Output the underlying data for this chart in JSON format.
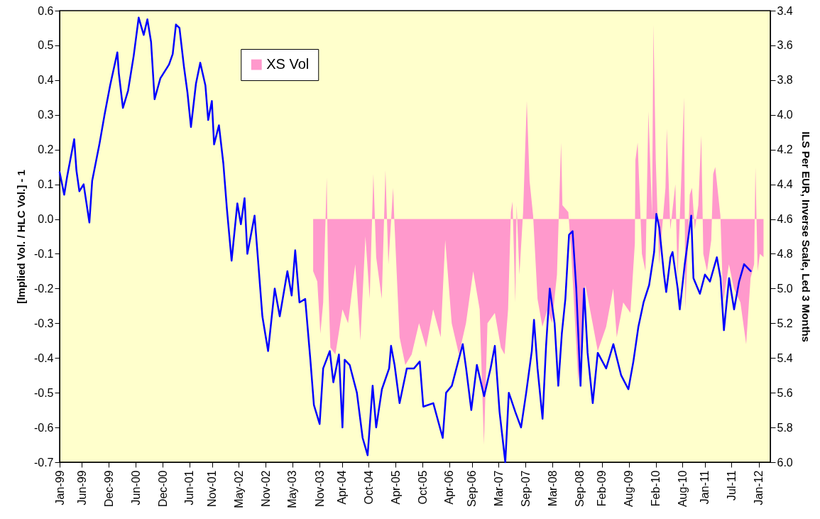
{
  "chart_data": {
    "type": "line",
    "ylabel": "[Implied Vol. / HLC Vol.] - 1",
    "y2label": "ILS Per EUR, Inverse Scale, Led 3 Months",
    "legend": "top left",
    "xlim": [
      "1999-01-01",
      "2012-03-20"
    ],
    "xticks": [
      {
        "value": "1999-01",
        "label": "Jan-99"
      },
      {
        "value": "1999-06",
        "label": "Jun-99"
      },
      {
        "value": "1999-12",
        "label": "Dec-99"
      },
      {
        "value": "2000-06",
        "label": "Jun-00"
      },
      {
        "value": "2000-12",
        "label": "Dec-00"
      },
      {
        "value": "2001-06",
        "label": "Jun-01"
      },
      {
        "value": "2001-11",
        "label": "Nov-01"
      },
      {
        "value": "2002-05",
        "label": "May-02"
      },
      {
        "value": "2002-11",
        "label": "Nov-02"
      },
      {
        "value": "2003-05",
        "label": "May-03"
      },
      {
        "value": "2003-11",
        "label": "Nov-03"
      },
      {
        "value": "2004-04",
        "label": "Apr-04"
      },
      {
        "value": "2004-10",
        "label": "Oct-04"
      },
      {
        "value": "2005-04",
        "label": "Apr-05"
      },
      {
        "value": "2005-10",
        "label": "Oct-05"
      },
      {
        "value": "2006-04",
        "label": "Apr-06"
      },
      {
        "value": "2006-09",
        "label": "Sep-06"
      },
      {
        "value": "2007-03",
        "label": "Mar-07"
      },
      {
        "value": "2007-09",
        "label": "Sep-07"
      },
      {
        "value": "2008-03",
        "label": "Mar-08"
      },
      {
        "value": "2008-09",
        "label": "Sep-08"
      },
      {
        "value": "2009-02",
        "label": "Feb-09"
      },
      {
        "value": "2009-08",
        "label": "Aug-09"
      },
      {
        "value": "2010-02",
        "label": "Feb-10"
      },
      {
        "value": "2010-08",
        "label": "Aug-10"
      },
      {
        "value": "2011-01",
        "label": "Jan-11"
      },
      {
        "value": "2011-07",
        "label": "Jul-11"
      },
      {
        "value": "2012-01",
        "label": "Jan-12"
      }
    ],
    "ylim": [
      -0.7,
      0.6
    ],
    "yticks": [
      -0.7,
      -0.6,
      -0.5,
      -0.4,
      -0.3,
      -0.2,
      -0.1,
      {
        "value": 0,
        "label": "0.0"
      },
      0.1,
      0.2,
      0.3,
      0.4,
      0.5,
      0.6
    ],
    "y2lim": [
      6,
      3.4
    ],
    "y2ticks": [
      3.4,
      3.6,
      3.8,
      {
        "value": 4,
        "label": "4.0"
      },
      4.2,
      4.4,
      4.6,
      4.8,
      {
        "value": 5,
        "label": "5.0"
      },
      5.2,
      5.4,
      5.6,
      5.8,
      {
        "value": 6,
        "label": "6.0"
      }
    ],
    "series": [
      {
        "name": "XS Vol",
        "type": "area",
        "color": "#ff99cc",
        "x": [
          "2003-09-19",
          "2003-10-17",
          "2003-11-07",
          "2003-11-26",
          "2003-12-20",
          "2003-12-30",
          "2004-01-14",
          "2004-02-17",
          "2004-04-05",
          "2004-05-13",
          "2004-07-01",
          "2004-08-05",
          "2004-09-08",
          "2004-10-07",
          "2004-11-01",
          "2004-11-20",
          "2004-12-28",
          "2005-01-22",
          "2005-02-11",
          "2005-03-15",
          "2005-03-24",
          "2005-04-28",
          "2005-06-06",
          "2005-07-19",
          "2005-09-07",
          "2005-10-25",
          "2005-12-12",
          "2006-02-01",
          "2006-03-04",
          "2006-04-17",
          "2006-06-05",
          "2006-07-23",
          "2006-09-10",
          "2006-10-24",
          "2006-11-22",
          "2006-12-16",
          "2007-02-04",
          "2007-03-17",
          "2007-04-11",
          "2007-05-05",
          "2007-05-24",
          "2007-06-04",
          "2007-06-23",
          "2007-07-02",
          "2007-07-21",
          "2007-08-15",
          "2007-09-09",
          "2007-09-28",
          "2007-10-22",
          "2007-11-21",
          "2007-12-24",
          "2008-01-28",
          "2008-02-27",
          "2008-04-01",
          "2008-04-29",
          "2008-05-08",
          "2008-06-17",
          "2008-07-06",
          "2008-08-24",
          "2008-10-11",
          "2008-11-29",
          "2009-01-03",
          "2009-03-01",
          "2009-04-18",
          "2009-05-12",
          "2009-06-25",
          "2009-08-13",
          "2009-09-12",
          "2009-09-16",
          "2009-10-01",
          "2009-10-30",
          "2009-11-23",
          "2009-12-13",
          "2010-01-07",
          "2010-01-16",
          "2010-02-01",
          "2010-02-24",
          "2010-04-08",
          "2010-04-17",
          "2010-05-11",
          "2010-06-14",
          "2010-06-29",
          "2010-07-23",
          "2010-08-12",
          "2010-08-21",
          "2010-09-20",
          "2010-10-05",
          "2010-10-24",
          "2010-11-17",
          "2010-12-07",
          "2010-12-21",
          "2011-01-15",
          "2011-02-13",
          "2011-02-26",
          "2011-03-12",
          "2011-04-16",
          "2011-05-05",
          "2011-06-13",
          "2011-07-17",
          "2011-08-30",
          "2011-10-08",
          "2011-11-07",
          "2011-12-01",
          "2011-12-10",
          "2011-12-25",
          "2012-01-09",
          "2012-02-03"
        ],
        "values": [
          -0.15,
          -0.18,
          -0.33,
          -0.24,
          0.12,
          -0.18,
          -0.37,
          -0.39,
          -0.26,
          -0.3,
          -0.13,
          -0.35,
          -0.05,
          -0.23,
          0.13,
          -0.11,
          -0.23,
          0.14,
          -0.13,
          0.09,
          -0.01,
          -0.34,
          -0.42,
          -0.39,
          -0.3,
          -0.37,
          -0.26,
          -0.34,
          -0.06,
          -0.3,
          -0.39,
          -0.3,
          -0.15,
          -0.26,
          -0.65,
          -0.3,
          -0.27,
          -0.37,
          -0.39,
          -0.26,
          0.02,
          0.05,
          -0.24,
          0.04,
          -0.16,
          0.02,
          0.34,
          0.11,
          0.01,
          -0.23,
          -0.31,
          -0.26,
          -0.3,
          -0.16,
          0.22,
          0.04,
          0.02,
          -0.09,
          -0.47,
          -0.19,
          -0.3,
          -0.38,
          -0.31,
          -0.2,
          -0.34,
          -0.24,
          -0.27,
          -0.07,
          0.17,
          0.22,
          -0.1,
          -0.15,
          0.31,
          0.01,
          0.56,
          0.17,
          -0.13,
          0.09,
          0.26,
          -0.03,
          0.1,
          -0.17,
          0.1,
          0.35,
          -0.26,
          0.07,
          0.09,
          -0.03,
          0.04,
          0.24,
          -0.1,
          -0.15,
          -0.06,
          0.13,
          0.15,
          0.01,
          -0.24,
          -0.13,
          -0.2,
          -0.24,
          -0.36,
          -0.17,
          -0.13,
          0.15,
          -0.15,
          -0.1,
          -0.11
        ]
      },
      {
        "axis": "y2",
        "color": "#0000ff",
        "x": [
          "1999-01-01",
          "1999-02-01",
          "1999-02-20",
          "1999-04-10",
          "1999-04-25",
          "1999-05-15",
          "1999-06-13",
          "1999-07-22",
          "1999-08-10",
          "1999-09-28",
          "1999-11-02",
          "1999-12-10",
          "2000-01-28",
          "2000-02-07",
          "2000-03-06",
          "2000-04-10",
          "2000-05-18",
          "2000-06-21",
          "2000-07-25",
          "2000-08-19",
          "2000-09-13",
          "2000-10-07",
          "2000-11-15",
          "2001-01-13",
          "2001-02-07",
          "2001-03-01",
          "2001-03-25",
          "2001-04-24",
          "2001-05-18",
          "2001-06-11",
          "2001-07-15",
          "2001-08-13",
          "2001-09-17",
          "2001-10-06",
          "2001-10-31",
          "2001-11-15",
          "2001-12-18",
          "2002-01-17",
          "2002-02-10",
          "2002-03-14",
          "2002-04-22",
          "2002-05-16",
          "2002-06-10",
          "2002-06-29",
          "2002-08-17",
          "2002-09-10",
          "2002-10-09",
          "2002-11-17",
          "2003-01-01",
          "2003-02-04",
          "2003-03-28",
          "2003-04-26",
          "2003-05-20",
          "2003-06-18",
          "2003-07-27",
          "2003-08-31",
          "2003-09-24",
          "2003-11-02",
          "2003-11-26",
          "2004-01-10",
          "2004-02-03",
          "2004-03-12",
          "2004-04-05",
          "2004-04-20",
          "2004-05-24",
          "2004-07-12",
          "2004-08-20",
          "2004-09-23",
          "2004-10-27",
          "2004-11-20",
          "2004-12-29",
          "2005-02-16",
          "2005-03-01",
          "2005-03-25",
          "2005-04-28",
          "2005-06-16",
          "2005-08-04",
          "2005-09-12",
          "2005-10-06",
          "2005-12-13",
          "2006-02-15",
          "2006-03-10",
          "2006-04-18",
          "2006-07-01",
          "2006-07-24",
          "2006-08-28",
          "2006-10-05",
          "2006-11-23",
          "2007-01-06",
          "2007-02-04",
          "2007-03-08",
          "2007-04-16",
          "2007-05-10",
          "2007-06-23",
          "2007-08-01",
          "2007-09-05",
          "2007-10-13",
          "2007-10-28",
          "2007-11-21",
          "2007-12-25",
          "2008-01-18",
          "2008-02-12",
          "2008-03-16",
          "2008-04-10",
          "2008-05-04",
          "2008-05-28",
          "2008-06-22",
          "2008-07-16",
          "2008-08-10",
          "2008-09-08",
          "2008-10-02",
          "2008-10-26",
          "2008-11-30",
          "2009-01-03",
          "2009-03-01",
          "2009-04-19",
          "2009-06-11",
          "2009-07-30",
          "2009-09-02",
          "2009-10-06",
          "2009-11-10",
          "2009-12-18",
          "2010-01-21",
          "2010-02-05",
          "2010-02-25",
          "2010-03-29",
          "2010-04-13",
          "2010-05-12",
          "2010-05-26",
          "2010-06-30",
          "2010-07-14",
          "2010-08-17",
          "2010-09-30",
          "2010-10-15",
          "2010-11-28",
          "2011-01-01",
          "2011-02-04",
          "2011-03-23",
          "2011-04-17",
          "2011-05-10",
          "2011-06-14",
          "2011-07-18",
          "2011-08-21",
          "2011-09-24",
          "2011-11-08"
        ],
        "values": [
          4.33,
          4.46,
          4.36,
          4.14,
          4.32,
          4.44,
          4.4,
          4.62,
          4.38,
          4.17,
          4.0,
          3.83,
          3.64,
          3.76,
          3.96,
          3.86,
          3.66,
          3.44,
          3.54,
          3.45,
          3.58,
          3.91,
          3.79,
          3.71,
          3.65,
          3.48,
          3.5,
          3.72,
          3.87,
          4.07,
          3.82,
          3.7,
          3.83,
          4.03,
          3.92,
          4.17,
          4.06,
          4.28,
          4.54,
          4.84,
          4.51,
          4.63,
          4.48,
          4.8,
          4.58,
          4.84,
          5.16,
          5.36,
          5.0,
          5.16,
          4.9,
          5.04,
          4.78,
          5.08,
          5.06,
          5.41,
          5.67,
          5.78,
          5.46,
          5.36,
          5.54,
          5.38,
          5.8,
          5.41,
          5.44,
          5.6,
          5.86,
          5.96,
          5.56,
          5.8,
          5.58,
          5.46,
          5.33,
          5.44,
          5.66,
          5.46,
          5.46,
          5.42,
          5.68,
          5.66,
          5.86,
          5.6,
          5.56,
          5.32,
          5.46,
          5.7,
          5.44,
          5.62,
          5.46,
          5.33,
          5.71,
          6.0,
          5.6,
          5.71,
          5.8,
          5.6,
          5.36,
          5.18,
          5.46,
          5.75,
          5.33,
          5.0,
          5.2,
          5.56,
          5.26,
          5.06,
          4.69,
          4.67,
          5.0,
          5.56,
          5.0,
          5.37,
          5.66,
          5.37,
          5.46,
          5.32,
          5.5,
          5.58,
          5.42,
          5.22,
          5.08,
          4.98,
          4.79,
          4.57,
          4.65,
          4.92,
          5.02,
          4.82,
          4.79,
          5.0,
          5.12,
          4.86,
          4.58,
          4.94,
          5.03,
          4.92,
          4.96,
          4.82,
          4.94,
          5.24,
          4.94,
          5.12,
          4.96,
          4.86,
          4.9
        ]
      }
    ]
  }
}
